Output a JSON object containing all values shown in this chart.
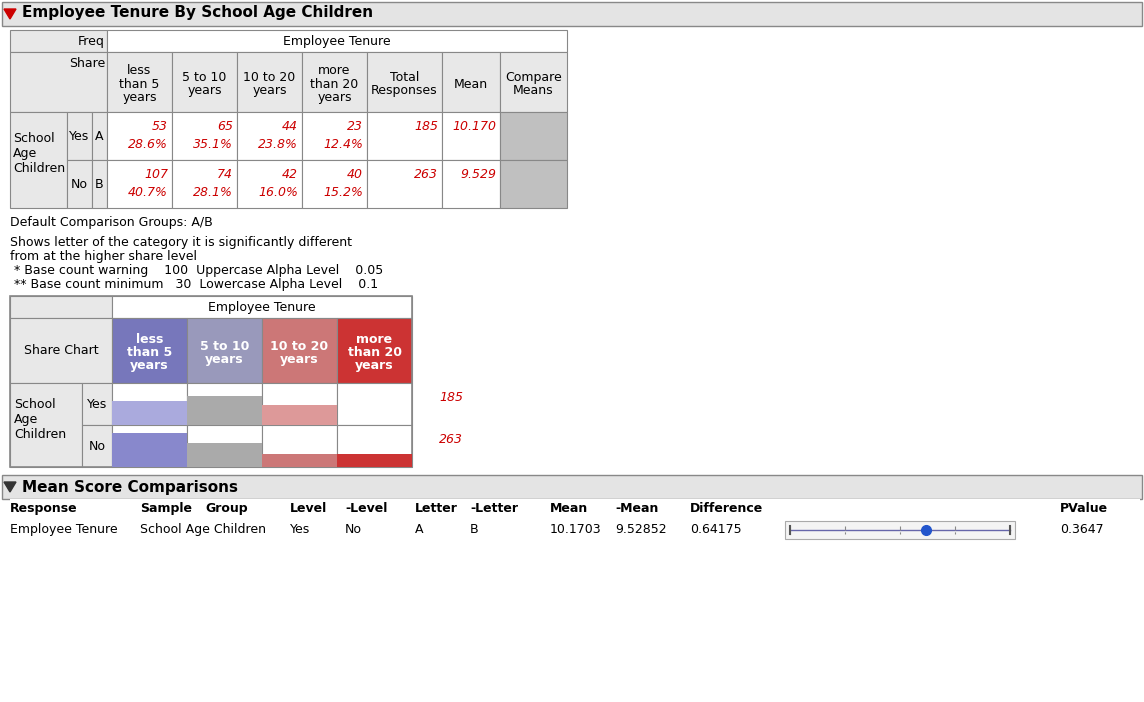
{
  "title": "Employee Tenure By School Age Children",
  "section2_title": "Mean Score Comparisons",
  "col_header_labels": [
    "less\nthan 5\nyears",
    "5 to 10\nyears",
    "10 to 20\nyears",
    "more\nthan 20\nyears",
    "Total\nResponses",
    "Mean",
    "Compare\nMeans"
  ],
  "row_sub_labels": [
    "Yes",
    "No"
  ],
  "row_letters": [
    "A",
    "B"
  ],
  "data_counts": [
    [
      53,
      65,
      44,
      23
    ],
    [
      107,
      74,
      42,
      40
    ]
  ],
  "data_totals": [
    185,
    263
  ],
  "data_means": [
    "10.170",
    "9.529"
  ],
  "data_pcts": [
    [
      "28.6%",
      "35.1%",
      "23.8%",
      "12.4%"
    ],
    [
      "40.7%",
      "28.1%",
      "16.0%",
      "15.2%"
    ]
  ],
  "note1": "Default Comparison Groups: A/B",
  "note2a": "Shows letter of the category it is significantly different",
  "note2b": "from at the higher share level",
  "note3": " * Base count warning    100  Uppercase Alpha Level    0.05",
  "note4": " ** Base count minimum   30  Lowercase Alpha Level    0.1",
  "share_col_labels": [
    "less\nthan 5\nyears",
    "5 to 10\nyears",
    "10 to 20\nyears",
    "more\nthan 20\nyears"
  ],
  "share_totals": [
    185,
    263
  ],
  "yes_pcts": [
    0.286,
    0.351,
    0.238,
    0.124
  ],
  "no_pcts": [
    0.407,
    0.281,
    0.16,
    0.152
  ],
  "col_hdr_colors": [
    "#7777bb",
    "#9999bb",
    "#cc7777",
    "#cc3333"
  ],
  "col_bar_colors_yes": [
    "#c8c8e8",
    "#aaaacc",
    "#e8aaaa",
    "#ffffff"
  ],
  "col_bar_colors_no": [
    "#8888cc",
    "#aaaacc",
    "#cc8888",
    "#cc3333"
  ],
  "ms_response": "Employee Tenure",
  "ms_sample": "School Age Children",
  "ms_group": "Yes",
  "ms_level": "No",
  "ms_letter": "A",
  "ms_nletter": "B",
  "ms_mean": "10.1703",
  "ms_nmean": "9.52852",
  "ms_diff": "0.64175",
  "ms_pvalue": "0.3647",
  "gray_bg": "#e0e0e0",
  "mid_gray": "#c0c0c0",
  "red_text": "#cc0000",
  "hdr_bar_gray": "#e8e8e8"
}
